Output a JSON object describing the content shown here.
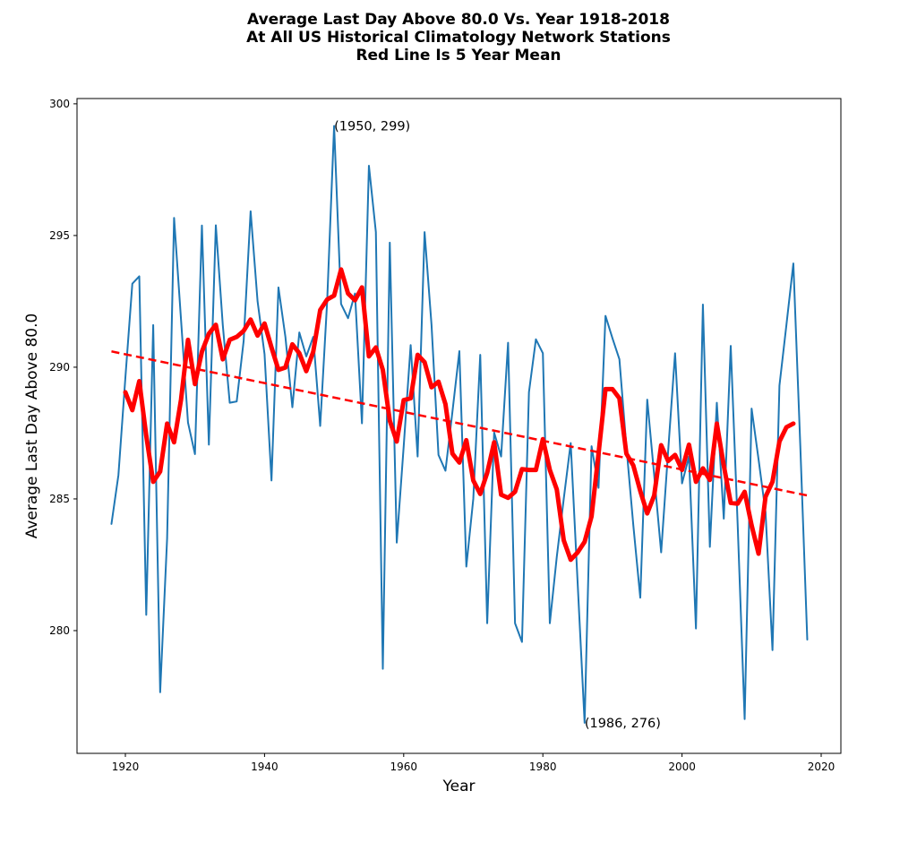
{
  "chart_data": {
    "type": "line",
    "title_lines": [
      "Average Last Day Above 80.0 Vs. Year 1918-2018",
      "At All US Historical Climatology Network Stations",
      "Red Line Is 5 Year Mean"
    ],
    "xlabel": "Year",
    "ylabel": "Average Last Day Above 80.0",
    "xlim": [
      1913.05,
      2022.83
    ],
    "ylim": [
      275.34,
      300.2
    ],
    "xticks": [
      1920,
      1940,
      1960,
      1980,
      2000,
      2020
    ],
    "xtick_labels": [
      "1920",
      "1940",
      "1960",
      "1980",
      "2000",
      "2020"
    ],
    "yticks": [
      280,
      285,
      290,
      295,
      300
    ],
    "ytick_labels": [
      "280",
      "285",
      "290",
      "295",
      "300"
    ],
    "grid": false,
    "series": [
      {
        "name": "Annual value",
        "color": "#1f77b4",
        "style": "solid",
        "x": [
          1918,
          1919,
          1920,
          1921,
          1922,
          1923,
          1924,
          1925,
          1926,
          1927,
          1928,
          1929,
          1930,
          1931,
          1932,
          1933,
          1934,
          1935,
          1936,
          1937,
          1938,
          1939,
          1940,
          1941,
          1942,
          1943,
          1944,
          1945,
          1946,
          1947,
          1948,
          1949,
          1950,
          1951,
          1952,
          1953,
          1954,
          1955,
          1956,
          1957,
          1958,
          1959,
          1960,
          1961,
          1962,
          1963,
          1964,
          1965,
          1966,
          1967,
          1968,
          1969,
          1970,
          1971,
          1972,
          1973,
          1974,
          1975,
          1976,
          1977,
          1978,
          1979,
          1980,
          1981,
          1982,
          1983,
          1984,
          1985,
          1986,
          1987,
          1988,
          1989,
          1990,
          1991,
          1992,
          1993,
          1994,
          1995,
          1996,
          1997,
          1998,
          1999,
          2000,
          2001,
          2002,
          2003,
          2004,
          2005,
          2006,
          2007,
          2008,
          2009,
          2010,
          2011,
          2012,
          2013,
          2014,
          2015,
          2016,
          2017,
          2018
        ],
        "y": [
          284.05,
          285.9,
          289.6,
          293.17,
          293.45,
          280.6,
          291.6,
          277.66,
          283.5,
          295.67,
          291.8,
          287.9,
          286.7,
          295.38,
          287.06,
          295.39,
          291.6,
          288.65,
          288.7,
          291.0,
          295.92,
          292.5,
          290.5,
          285.7,
          293.03,
          291.15,
          288.48,
          291.32,
          290.41,
          291.15,
          287.77,
          292.5,
          299.16,
          292.4,
          291.86,
          292.8,
          287.87,
          297.65,
          295.13,
          278.55,
          294.73,
          283.34,
          287.0,
          290.84,
          286.61,
          295.13,
          291.6,
          286.67,
          286.07,
          288.3,
          290.61,
          282.43,
          285.0,
          290.47,
          280.28,
          287.52,
          286.61,
          290.93,
          280.28,
          279.57,
          289.05,
          291.06,
          290.53,
          280.28,
          282.8,
          285.0,
          287.12,
          281.8,
          276.5,
          287.0,
          285.42,
          291.95,
          291.1,
          290.3,
          287.0,
          284.0,
          281.25,
          288.77,
          285.9,
          282.97,
          286.8,
          290.53,
          285.59,
          286.61,
          280.08,
          292.38,
          283.18,
          288.65,
          284.25,
          290.81,
          284.0,
          276.64,
          288.43,
          286.5,
          284.5,
          279.26,
          289.3,
          291.6,
          293.94,
          287.0,
          279.66
        ]
      },
      {
        "name": "5 Year Mean",
        "color": "#ff0000",
        "style": "solid-thick",
        "x": [
          1920,
          1921,
          1922,
          1923,
          1924,
          1925,
          1926,
          1927,
          1928,
          1929,
          1930,
          1931,
          1932,
          1933,
          1934,
          1935,
          1936,
          1937,
          1938,
          1939,
          1940,
          1941,
          1942,
          1943,
          1944,
          1945,
          1946,
          1947,
          1948,
          1949,
          1950,
          1951,
          1952,
          1953,
          1954,
          1955,
          1956,
          1957,
          1958,
          1959,
          1960,
          1961,
          1962,
          1963,
          1964,
          1965,
          1966,
          1967,
          1968,
          1969,
          1970,
          1971,
          1972,
          1973,
          1974,
          1975,
          1976,
          1977,
          1978,
          1979,
          1980,
          1981,
          1982,
          1983,
          1984,
          1985,
          1986,
          1987,
          1988,
          1989,
          1990,
          1991,
          1992,
          1993,
          1994,
          1995,
          1996,
          1997,
          1998,
          1999,
          2000,
          2001,
          2002,
          2003,
          2004,
          2005,
          2006,
          2007,
          2008,
          2009,
          2010,
          2011,
          2012,
          2013,
          2014,
          2015,
          2016
        ],
        "y": [
          289.05,
          288.37,
          289.47,
          287.4,
          285.65,
          286.04,
          287.86,
          287.15,
          288.77,
          291.04,
          289.36,
          290.59,
          291.27,
          291.61,
          290.3,
          291.04,
          291.15,
          291.38,
          291.81,
          291.2,
          291.66,
          290.75,
          289.9,
          289.99,
          290.87,
          290.53,
          289.85,
          290.59,
          292.17,
          292.57,
          292.72,
          293.71,
          292.8,
          292.54,
          293.03,
          290.41,
          290.75,
          289.9,
          287.97,
          287.18,
          288.75,
          288.82,
          290.47,
          290.19,
          289.24,
          289.45,
          288.6,
          286.72,
          286.38,
          287.23,
          285.7,
          285.19,
          285.99,
          287.15,
          285.16,
          285.04,
          285.27,
          286.13,
          286.1,
          286.1,
          287.27,
          286.1,
          285.36,
          283.43,
          282.69,
          282.97,
          283.37,
          284.34,
          286.72,
          289.17,
          289.17,
          288.82,
          286.72,
          286.27,
          285.3,
          284.45,
          285.13,
          287.04,
          286.44,
          286.67,
          286.1,
          287.06,
          285.65,
          286.16,
          285.72,
          287.86,
          286.27,
          284.85,
          284.82,
          285.27,
          284.0,
          282.92,
          285.08,
          285.65,
          287.18,
          287.72,
          287.86
        ]
      },
      {
        "name": "Linear trend",
        "color": "#ff0000",
        "style": "dashed",
        "x": [
          1918,
          2018
        ],
        "y": [
          290.6,
          285.13
        ]
      }
    ],
    "annotations": [
      {
        "text": "(1950, 299)",
        "x": 1950,
        "y": 299.16
      },
      {
        "text": "(1986, 276)",
        "x": 1986,
        "y": 276.5
      }
    ],
    "legend": "none"
  }
}
